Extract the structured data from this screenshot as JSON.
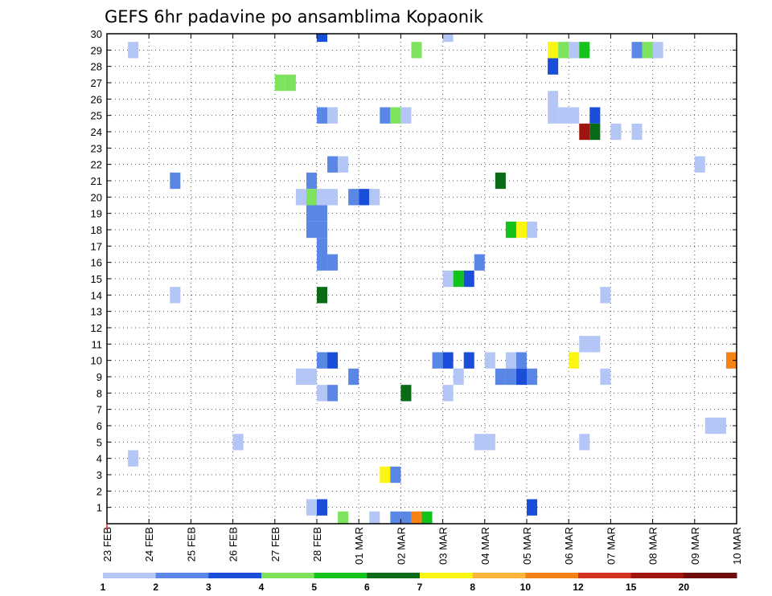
{
  "chart_data": {
    "type": "heatmap",
    "title": "GEFS 6hr padavine po ansamblima Kopaonik",
    "x_tick_labels": [
      "23 FEB",
      "24 FEB",
      "25 FEB",
      "26 FEB",
      "27 FEB",
      "28 FEB",
      "01 MAR",
      "02 MAR",
      "03 MAR",
      "04 MAR",
      "05 MAR",
      "06 MAR",
      "07 MAR",
      "08 MAR",
      "09 MAR",
      "10 MAR"
    ],
    "y_tick_labels": [
      "1",
      "2",
      "3",
      "4",
      "5",
      "6",
      "7",
      "8",
      "9",
      "10",
      "11",
      "12",
      "13",
      "14",
      "15",
      "16",
      "17",
      "18",
      "19",
      "20",
      "21",
      "22",
      "23",
      "24",
      "25",
      "26",
      "27",
      "28",
      "29",
      "30"
    ],
    "x_range_steps": [
      0,
      60
    ],
    "y_range": [
      0,
      30
    ],
    "grid": true,
    "colorbar": {
      "labels": [
        "1",
        "2",
        "3",
        "4",
        "5",
        "6",
        "7",
        "8",
        "10",
        "12",
        "15",
        "20"
      ],
      "colors": [
        "#b4c6f5",
        "#5a87e6",
        "#1a4ed8",
        "#7ee35c",
        "#14c21e",
        "#0a6b16",
        "#fbf514",
        "#fbb43c",
        "#f58214",
        "#d2321e",
        "#a0140e",
        "#6e0c0c"
      ]
    },
    "cells": [
      {
        "x": 20.5,
        "y": 30,
        "c": 2
      },
      {
        "x": 32.5,
        "y": 30,
        "c": 0
      },
      {
        "x": 2.5,
        "y": 29,
        "c": 0
      },
      {
        "x": 29.5,
        "y": 29,
        "c": 3
      },
      {
        "x": 42.5,
        "y": 29,
        "c": 6
      },
      {
        "x": 43.5,
        "y": 29,
        "c": 3
      },
      {
        "x": 44.5,
        "y": 29,
        "c": 0
      },
      {
        "x": 45.5,
        "y": 29,
        "c": 4
      },
      {
        "x": 50.5,
        "y": 29,
        "c": 1
      },
      {
        "x": 51.5,
        "y": 29,
        "c": 3
      },
      {
        "x": 52.5,
        "y": 29,
        "c": 0
      },
      {
        "x": 42.5,
        "y": 28,
        "c": 2
      },
      {
        "x": 16.5,
        "y": 27,
        "c": 3
      },
      {
        "x": 17.5,
        "y": 27,
        "c": 3
      },
      {
        "x": 42.5,
        "y": 26,
        "c": 0
      },
      {
        "x": 20.5,
        "y": 25,
        "c": 1
      },
      {
        "x": 21.5,
        "y": 25,
        "c": 0
      },
      {
        "x": 26.5,
        "y": 25,
        "c": 1
      },
      {
        "x": 27.5,
        "y": 25,
        "c": 3
      },
      {
        "x": 28.5,
        "y": 25,
        "c": 0
      },
      {
        "x": 42.5,
        "y": 25,
        "c": 0
      },
      {
        "x": 43.5,
        "y": 25,
        "c": 0
      },
      {
        "x": 44.5,
        "y": 25,
        "c": 0
      },
      {
        "x": 46.5,
        "y": 25,
        "c": 2
      },
      {
        "x": 45.5,
        "y": 24,
        "c": 10
      },
      {
        "x": 46.5,
        "y": 24,
        "c": 5
      },
      {
        "x": 48.5,
        "y": 24,
        "c": 0
      },
      {
        "x": 50.5,
        "y": 24,
        "c": 0
      },
      {
        "x": 21.5,
        "y": 22,
        "c": 1
      },
      {
        "x": 22.5,
        "y": 22,
        "c": 0
      },
      {
        "x": 56.5,
        "y": 22,
        "c": 0
      },
      {
        "x": 6.5,
        "y": 21,
        "c": 1
      },
      {
        "x": 19.5,
        "y": 21,
        "c": 1
      },
      {
        "x": 37.5,
        "y": 21,
        "c": 5
      },
      {
        "x": 18.5,
        "y": 20,
        "c": 0
      },
      {
        "x": 19.5,
        "y": 20,
        "c": 3
      },
      {
        "x": 20.5,
        "y": 20,
        "c": 0
      },
      {
        "x": 21.5,
        "y": 20,
        "c": 0
      },
      {
        "x": 23.5,
        "y": 20,
        "c": 1
      },
      {
        "x": 24.5,
        "y": 20,
        "c": 2
      },
      {
        "x": 25.5,
        "y": 20,
        "c": 0
      },
      {
        "x": 19.5,
        "y": 19,
        "c": 1
      },
      {
        "x": 20.5,
        "y": 19,
        "c": 1
      },
      {
        "x": 19.5,
        "y": 18,
        "c": 1
      },
      {
        "x": 20.5,
        "y": 18,
        "c": 1
      },
      {
        "x": 38.5,
        "y": 18,
        "c": 4
      },
      {
        "x": 39.5,
        "y": 18,
        "c": 6
      },
      {
        "x": 40.5,
        "y": 18,
        "c": 0
      },
      {
        "x": 20.5,
        "y": 17,
        "c": 1
      },
      {
        "x": 20.5,
        "y": 16,
        "c": 1
      },
      {
        "x": 21.5,
        "y": 16,
        "c": 1
      },
      {
        "x": 35.5,
        "y": 16,
        "c": 1
      },
      {
        "x": 32.5,
        "y": 15,
        "c": 0
      },
      {
        "x": 33.5,
        "y": 15,
        "c": 4
      },
      {
        "x": 34.5,
        "y": 15,
        "c": 2
      },
      {
        "x": 6.5,
        "y": 14,
        "c": 0
      },
      {
        "x": 20.5,
        "y": 14,
        "c": 5
      },
      {
        "x": 47.5,
        "y": 14,
        "c": 0
      },
      {
        "x": 45.5,
        "y": 11,
        "c": 0
      },
      {
        "x": 46.5,
        "y": 11,
        "c": 0
      },
      {
        "x": 20.5,
        "y": 10,
        "c": 1
      },
      {
        "x": 21.5,
        "y": 10,
        "c": 2
      },
      {
        "x": 31.5,
        "y": 10,
        "c": 1
      },
      {
        "x": 32.5,
        "y": 10,
        "c": 2
      },
      {
        "x": 34.5,
        "y": 10,
        "c": 2
      },
      {
        "x": 36.5,
        "y": 10,
        "c": 0
      },
      {
        "x": 38.5,
        "y": 10,
        "c": 0
      },
      {
        "x": 39.5,
        "y": 10,
        "c": 1
      },
      {
        "x": 44.5,
        "y": 10,
        "c": 6
      },
      {
        "x": 59.5,
        "y": 10,
        "c": 8
      },
      {
        "x": 18.5,
        "y": 9,
        "c": 0
      },
      {
        "x": 19.5,
        "y": 9,
        "c": 0
      },
      {
        "x": 23.5,
        "y": 9,
        "c": 1
      },
      {
        "x": 33.5,
        "y": 9,
        "c": 0
      },
      {
        "x": 37.5,
        "y": 9,
        "c": 1
      },
      {
        "x": 38.5,
        "y": 9,
        "c": 1
      },
      {
        "x": 39.5,
        "y": 9,
        "c": 2
      },
      {
        "x": 40.5,
        "y": 9,
        "c": 1
      },
      {
        "x": 47.5,
        "y": 9,
        "c": 0
      },
      {
        "x": 20.5,
        "y": 8,
        "c": 0
      },
      {
        "x": 21.5,
        "y": 8,
        "c": 1
      },
      {
        "x": 28.5,
        "y": 8,
        "c": 5
      },
      {
        "x": 32.5,
        "y": 8,
        "c": 0
      },
      {
        "x": 57.5,
        "y": 6,
        "c": 0
      },
      {
        "x": 58.5,
        "y": 6,
        "c": 0
      },
      {
        "x": 12.5,
        "y": 5,
        "c": 0
      },
      {
        "x": 35.5,
        "y": 5,
        "c": 0
      },
      {
        "x": 36.5,
        "y": 5,
        "c": 0
      },
      {
        "x": 45.5,
        "y": 5,
        "c": 0
      },
      {
        "x": 2.5,
        "y": 4,
        "c": 0
      },
      {
        "x": 26.5,
        "y": 3,
        "c": 6
      },
      {
        "x": 27.5,
        "y": 3,
        "c": 1
      },
      {
        "x": 19.5,
        "y": 1,
        "c": 0
      },
      {
        "x": 20.5,
        "y": 1,
        "c": 2
      },
      {
        "x": 40.5,
        "y": 1,
        "c": 2
      },
      {
        "x": 22.5,
        "y": 0.25,
        "c": 3
      },
      {
        "x": 25.5,
        "y": 0.25,
        "c": 0
      },
      {
        "x": 27.5,
        "y": 0.25,
        "c": 1
      },
      {
        "x": 28.5,
        "y": 0.25,
        "c": 1
      },
      {
        "x": 29.5,
        "y": 0.25,
        "c": 8
      },
      {
        "x": 30.5,
        "y": 0.25,
        "c": 4
      }
    ]
  }
}
